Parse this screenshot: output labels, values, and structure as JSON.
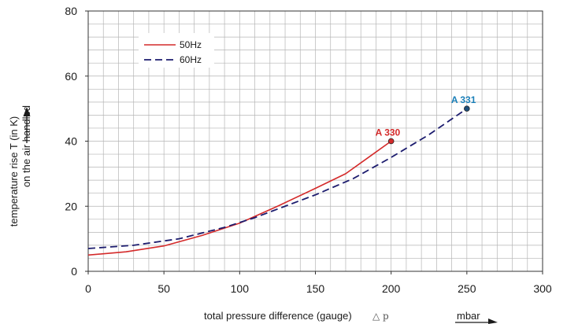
{
  "chart_data": {
    "type": "line",
    "xlabel": "total pressure difference (gauge)",
    "xlabel_symbol": "p",
    "xunit": "mbar",
    "ylabel_line1": "temperature rise T (in K)",
    "ylabel_line2": "on the air handled",
    "xlim": [
      0,
      300
    ],
    "ylim": [
      0,
      80
    ],
    "xticks": [
      0,
      50,
      100,
      150,
      200,
      250,
      300
    ],
    "yticks": [
      0,
      20,
      40,
      60,
      80
    ],
    "grid": true,
    "legend_position": "top-left",
    "series": [
      {
        "name": "50Hz",
        "color": "#d42a2a",
        "style": "solid",
        "x": [
          0,
          25,
          50,
          75,
          100,
          125,
          150,
          170,
          185,
          200
        ],
        "y": [
          5,
          6,
          7.8,
          11,
          14.8,
          20,
          25.5,
          30,
          35,
          40
        ]
      },
      {
        "name": "60Hz",
        "color": "#1c1c6e",
        "style": "dashed",
        "x": [
          0,
          30,
          60,
          90,
          110,
          130,
          150,
          175,
          200,
          225,
          250
        ],
        "y": [
          7,
          8,
          10,
          13.5,
          16.5,
          20,
          23.5,
          28.5,
          35,
          42,
          50
        ]
      }
    ],
    "annotations": [
      {
        "text": "A 330",
        "x": 200,
        "y": 40,
        "color": "#d42a2a"
      },
      {
        "text": "A 331",
        "x": 250,
        "y": 50,
        "color": "#1a7fb8"
      }
    ]
  }
}
